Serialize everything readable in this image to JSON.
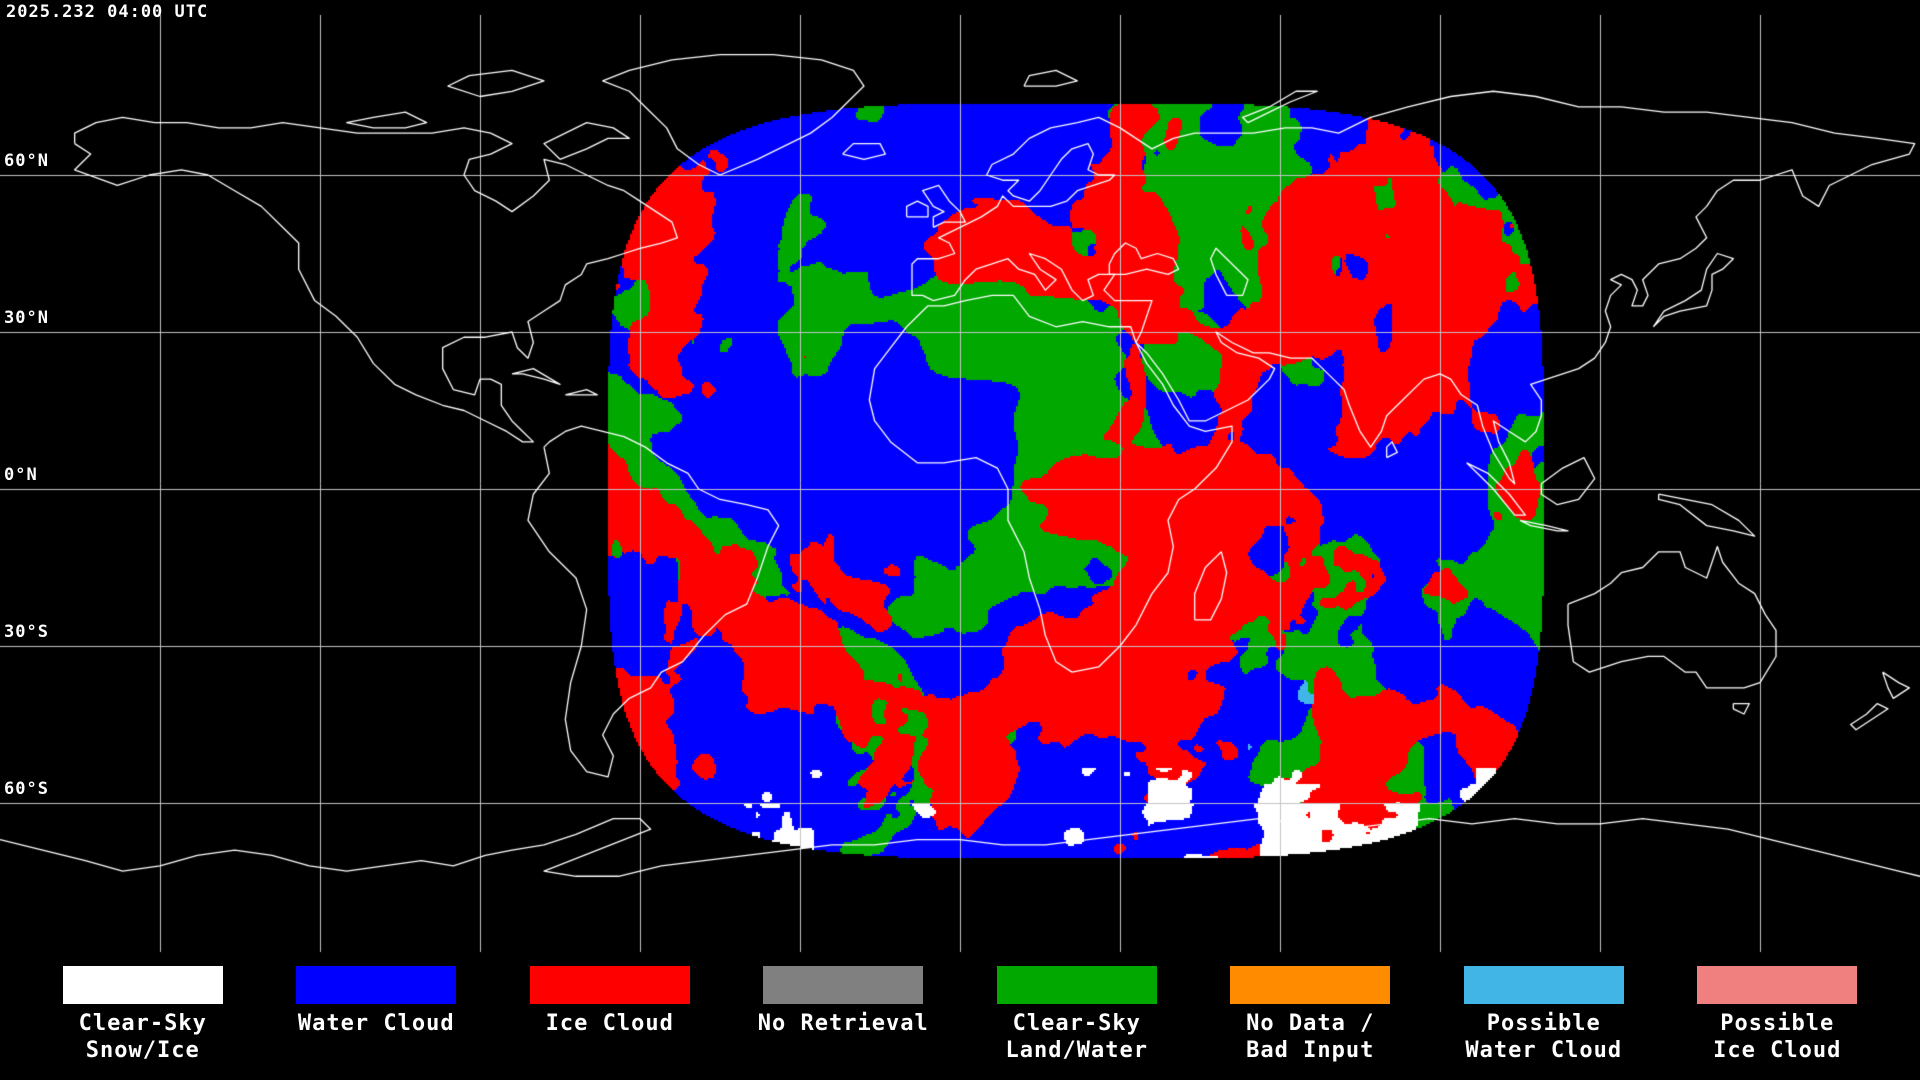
{
  "header": {
    "timestamp": "2025.232 04:00 UTC"
  },
  "map": {
    "latitude_labels": [
      {
        "text": "60°N",
        "lat": 60
      },
      {
        "text": "30°N",
        "lat": 30
      },
      {
        "text": "0°N",
        "lat": 0
      },
      {
        "text": "30°S",
        "lat": -30
      },
      {
        "text": "60°S",
        "lat": -60
      }
    ],
    "grid_interval_deg": 30,
    "colors": {
      "background": "#000000",
      "coastline": "#ffffff",
      "graticule": "#c4c4c4"
    }
  },
  "legend": {
    "items": [
      {
        "id": "clear-sky-snow-ice",
        "color": "#ffffff",
        "line1": "Clear-Sky",
        "line2": "Snow/Ice"
      },
      {
        "id": "water-cloud",
        "color": "#0000ff",
        "line1": "Water Cloud",
        "line2": ""
      },
      {
        "id": "ice-cloud",
        "color": "#ff0000",
        "line1": "Ice Cloud",
        "line2": ""
      },
      {
        "id": "no-retrieval",
        "color": "#808080",
        "line1": "No Retrieval",
        "line2": ""
      },
      {
        "id": "clear-sky-land-water",
        "color": "#00a800",
        "line1": "Clear-Sky",
        "line2": "Land/Water"
      },
      {
        "id": "no-data-bad-input",
        "color": "#ff8c00",
        "line1": "No Data /",
        "line2": "Bad Input"
      },
      {
        "id": "possible-water-cloud",
        "color": "#41b6e6",
        "line1": "Possible",
        "line2": "Water Cloud"
      },
      {
        "id": "possible-ice-cloud",
        "color": "#f08080",
        "line1": "Possible",
        "line2": "Ice Cloud"
      }
    ]
  }
}
